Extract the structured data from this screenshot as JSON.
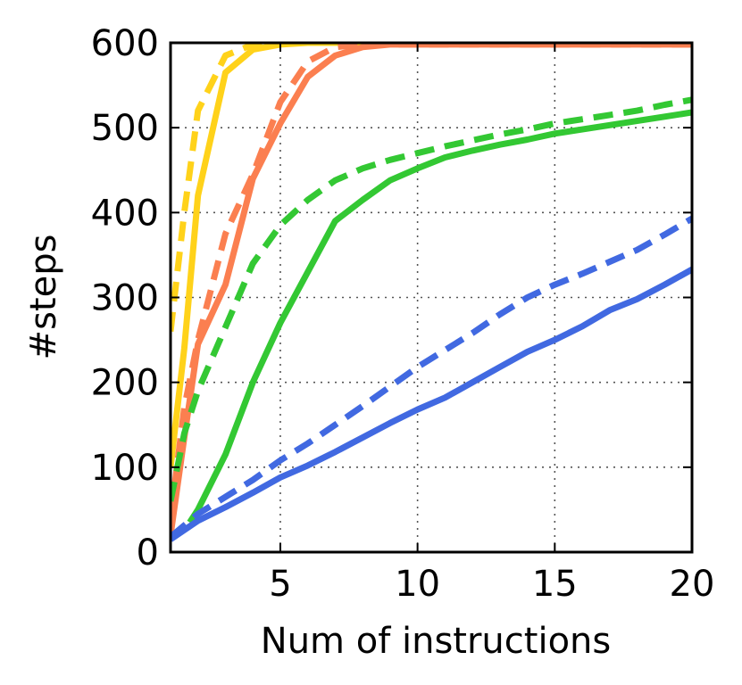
{
  "chart_data": {
    "type": "line",
    "title": "",
    "xlabel": "Num of instructions",
    "ylabel": "#steps",
    "xlim": [
      1,
      20
    ],
    "ylim": [
      0,
      600
    ],
    "xticks": [
      5,
      10,
      15,
      20
    ],
    "yticks": [
      0,
      100,
      200,
      300,
      400,
      500,
      600
    ],
    "xtick_labels": [
      "5",
      "10",
      "15",
      "20"
    ],
    "ytick_labels": [
      "0",
      "100",
      "200",
      "300",
      "400",
      "500",
      "600"
    ],
    "grid": true,
    "legend": "none",
    "series": [
      {
        "color": "#ffd21a",
        "style": "solid",
        "x": [
          1,
          1.5,
          2,
          3,
          4,
          5,
          6,
          8,
          20
        ],
        "y": [
          100,
          240,
          420,
          565,
          592,
          598,
          600,
          600,
          600
        ]
      },
      {
        "color": "#ffd21a",
        "style": "dashed",
        "x": [
          1,
          1.5,
          2,
          3,
          4,
          5,
          6,
          8,
          20
        ],
        "y": [
          260,
          400,
          520,
          585,
          598,
          600,
          600,
          600,
          600
        ]
      },
      {
        "color": "#fb7f50",
        "style": "solid",
        "x": [
          1,
          1.5,
          2,
          3,
          4,
          5,
          6,
          7,
          8,
          9,
          20
        ],
        "y": [
          20,
          135,
          245,
          315,
          440,
          505,
          560,
          585,
          595,
          598,
          598
        ]
      },
      {
        "color": "#fb7f50",
        "style": "dashed",
        "x": [
          1,
          1.5,
          2,
          3,
          4,
          5,
          6,
          7,
          8,
          20
        ],
        "y": [
          40,
          170,
          250,
          375,
          445,
          530,
          578,
          595,
          598,
          598
        ]
      },
      {
        "color": "#33c833",
        "style": "solid",
        "x": [
          1.7,
          2,
          3,
          4,
          5,
          6,
          7,
          8,
          9,
          10,
          11,
          12,
          13,
          14,
          15,
          16,
          17,
          18,
          19,
          20
        ],
        "y": [
          35,
          50,
          115,
          200,
          270,
          330,
          390,
          415,
          438,
          452,
          465,
          473,
          480,
          486,
          493,
          498,
          503,
          508,
          513,
          518
        ]
      },
      {
        "color": "#33c833",
        "style": "dashed",
        "x": [
          1,
          1.5,
          2,
          3,
          4,
          5,
          6,
          7,
          8,
          9,
          10,
          11,
          12,
          13,
          14,
          15,
          16,
          17,
          18,
          19,
          20
        ],
        "y": [
          60,
          140,
          190,
          265,
          340,
          385,
          415,
          438,
          452,
          462,
          470,
          478,
          485,
          492,
          498,
          505,
          510,
          515,
          520,
          527,
          533
        ]
      },
      {
        "color": "#4169e1",
        "style": "solid",
        "x": [
          1,
          2,
          3,
          4,
          5,
          6,
          7,
          8,
          9,
          10,
          11,
          12,
          13,
          14,
          15,
          16,
          17,
          18,
          19,
          20
        ],
        "y": [
          15,
          37,
          53,
          70,
          88,
          102,
          118,
          135,
          152,
          168,
          182,
          200,
          218,
          236,
          250,
          266,
          285,
          298,
          315,
          333
        ]
      },
      {
        "color": "#4169e1",
        "style": "dashed",
        "x": [
          1,
          2,
          3,
          4,
          5,
          6,
          7,
          8,
          9,
          10,
          11,
          12,
          13,
          14,
          15,
          16,
          17,
          18,
          19,
          20
        ],
        "y": [
          18,
          45,
          65,
          85,
          108,
          128,
          150,
          172,
          195,
          218,
          238,
          258,
          280,
          300,
          315,
          328,
          342,
          356,
          374,
          393
        ]
      }
    ]
  }
}
